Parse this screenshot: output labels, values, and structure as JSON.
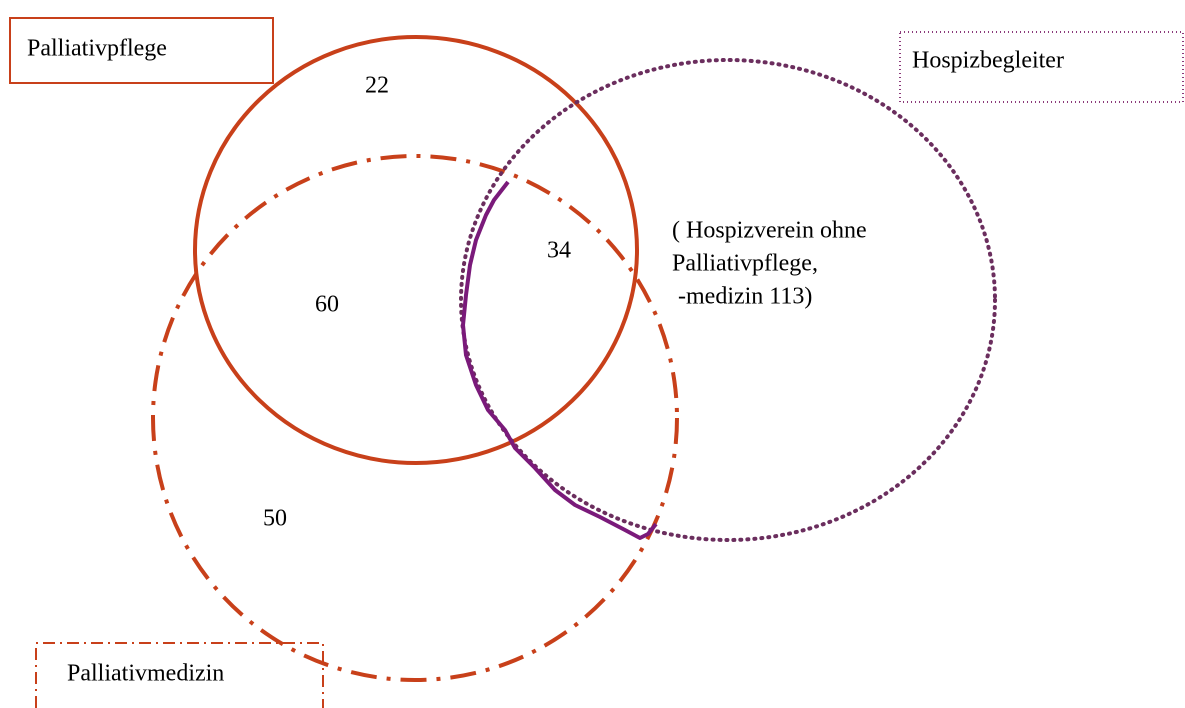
{
  "sets": [
    {
      "label": "Palliativpflege"
    },
    {
      "label": "Hospizbegleiter"
    },
    {
      "label": "Palliativmedizin"
    }
  ],
  "regions": [
    {
      "value": 22
    },
    {
      "value": 60
    },
    {
      "value": 34
    },
    {
      "value": 50
    }
  ],
  "annotation": {
    "lines": [
      "( Hospizverein ohne",
      "Palliativpflege,",
      " -medizin 113)"
    ]
  }
}
